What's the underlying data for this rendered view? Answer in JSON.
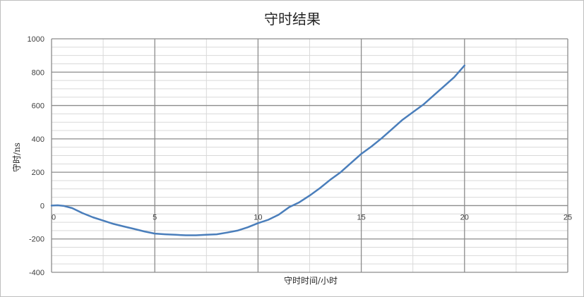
{
  "chart_data": {
    "type": "line",
    "title": "守时结果",
    "xlabel": "守时时间/小时",
    "ylabel": "守时/ns",
    "xlim": [
      0,
      25
    ],
    "ylim": [
      -400,
      1000
    ],
    "x_ticks": [
      "0",
      "5",
      "10",
      "15",
      "20",
      "25"
    ],
    "y_ticks": [
      "1000",
      "800",
      "600",
      "400",
      "200",
      "0",
      "-200",
      "-400"
    ],
    "grid": true,
    "legend": "none",
    "series": [
      {
        "color": "#4a7ebb",
        "x": [
          0,
          0.3,
          0.6,
          1.0,
          1.5,
          2.0,
          2.5,
          3.0,
          3.5,
          4.0,
          4.5,
          5.0,
          5.5,
          6.0,
          6.5,
          7.0,
          7.5,
          8.0,
          8.5,
          9.0,
          9.5,
          10.0,
          10.5,
          11.0,
          11.5,
          12.0,
          12.5,
          13.0,
          13.5,
          14.0,
          14.5,
          15.0,
          15.5,
          16.0,
          16.5,
          17.0,
          17.5,
          18.0,
          18.5,
          19.0,
          19.5,
          20.0
        ],
        "y": [
          0,
          2,
          -2,
          -15,
          -45,
          -70,
          -90,
          -110,
          -125,
          -140,
          -155,
          -168,
          -172,
          -175,
          -178,
          -178,
          -175,
          -172,
          -162,
          -150,
          -130,
          -105,
          -85,
          -55,
          -10,
          20,
          60,
          105,
          155,
          200,
          255,
          310,
          355,
          405,
          460,
          515,
          560,
          605,
          660,
          715,
          770,
          840
        ]
      }
    ]
  }
}
